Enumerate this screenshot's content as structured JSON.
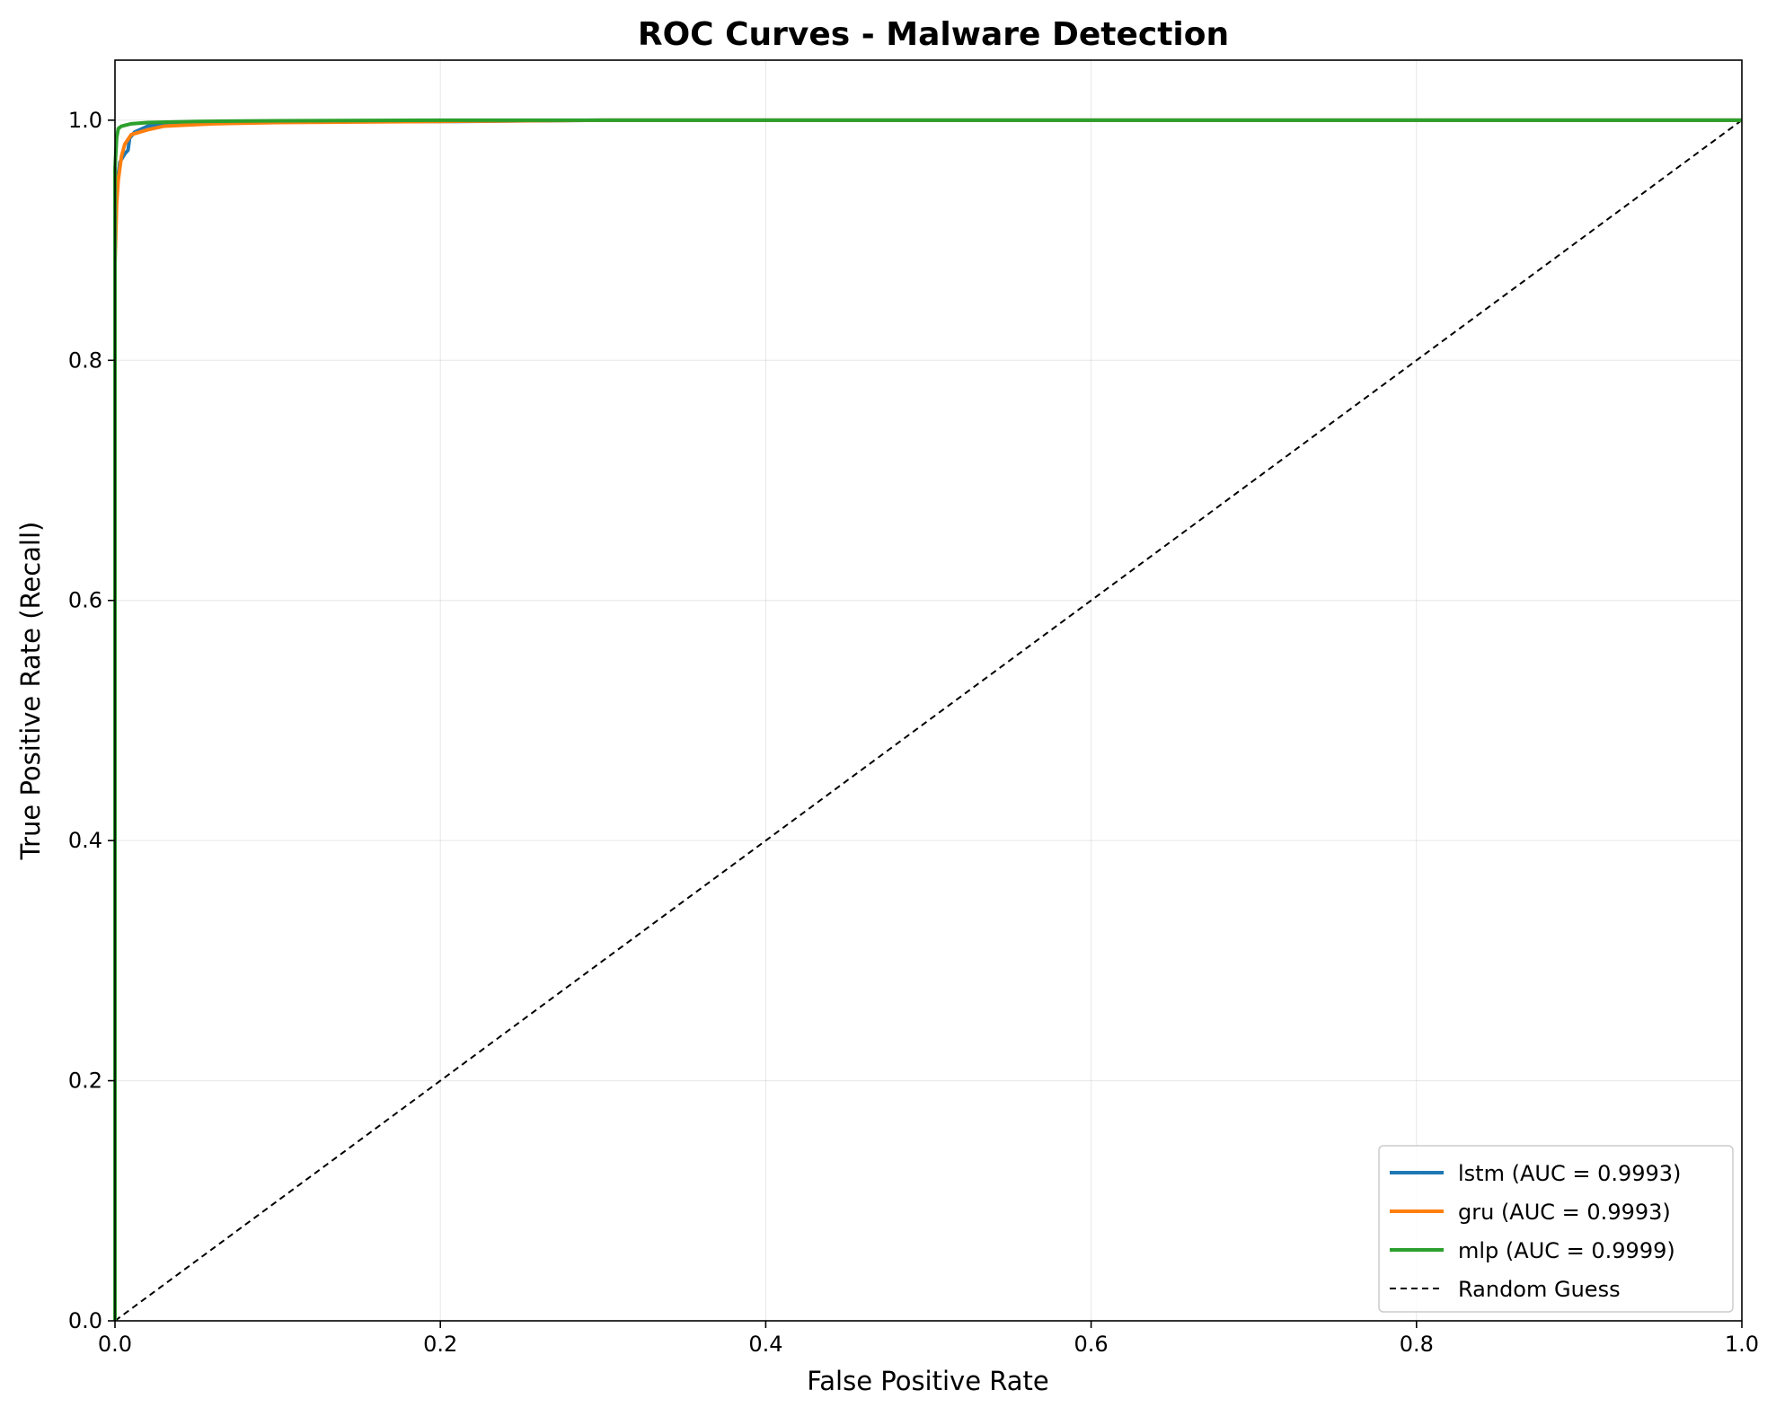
{
  "chart_data": {
    "type": "line",
    "title": "ROC Curves - Malware Detection",
    "xlabel": "False Positive Rate",
    "ylabel": "True Positive Rate (Recall)",
    "xlim": [
      0.0,
      1.0
    ],
    "ylim": [
      0.0,
      1.05
    ],
    "xticks": [
      "0.0",
      "0.2",
      "0.4",
      "0.6",
      "0.8",
      "1.0"
    ],
    "yticks": [
      "0.0",
      "0.2",
      "0.4",
      "0.6",
      "0.8",
      "1.0"
    ],
    "grid": true,
    "legend_position": "lower-right",
    "series": [
      {
        "name": "lstm (AUC = 0.9993)",
        "color": "#1f77b4",
        "x": [
          0.0,
          0.0,
          0.001,
          0.002,
          0.003,
          0.006,
          0.008,
          0.009,
          0.012,
          0.02,
          0.04,
          0.1,
          0.21,
          0.3,
          0.5,
          1.0
        ],
        "y": [
          0.0,
          0.9,
          0.94,
          0.955,
          0.965,
          0.972,
          0.975,
          0.985,
          0.99,
          0.995,
          0.998,
          0.999,
          0.999,
          1.0,
          1.0,
          1.0
        ]
      },
      {
        "name": "gru (AUC = 0.9993)",
        "color": "#ff7f0e",
        "x": [
          0.0,
          0.0,
          0.001,
          0.002,
          0.004,
          0.006,
          0.01,
          0.02,
          0.03,
          0.06,
          0.1,
          0.2,
          0.3,
          1.0
        ],
        "y": [
          0.0,
          0.88,
          0.93,
          0.95,
          0.97,
          0.98,
          0.988,
          0.992,
          0.995,
          0.997,
          0.998,
          0.999,
          1.0,
          1.0
        ]
      },
      {
        "name": "mlp (AUC = 0.9999)",
        "color": "#2ca02c",
        "x": [
          0.0,
          0.0,
          0.001,
          0.002,
          0.004,
          0.01,
          0.02,
          0.05,
          0.1,
          0.2,
          1.0
        ],
        "y": [
          0.0,
          0.96,
          0.985,
          0.993,
          0.995,
          0.997,
          0.998,
          0.999,
          0.9995,
          1.0,
          1.0
        ]
      },
      {
        "name": "Random Guess",
        "color": "#000000",
        "dashed": true,
        "x": [
          0.0,
          1.0
        ],
        "y": [
          0.0,
          1.0
        ]
      }
    ]
  }
}
